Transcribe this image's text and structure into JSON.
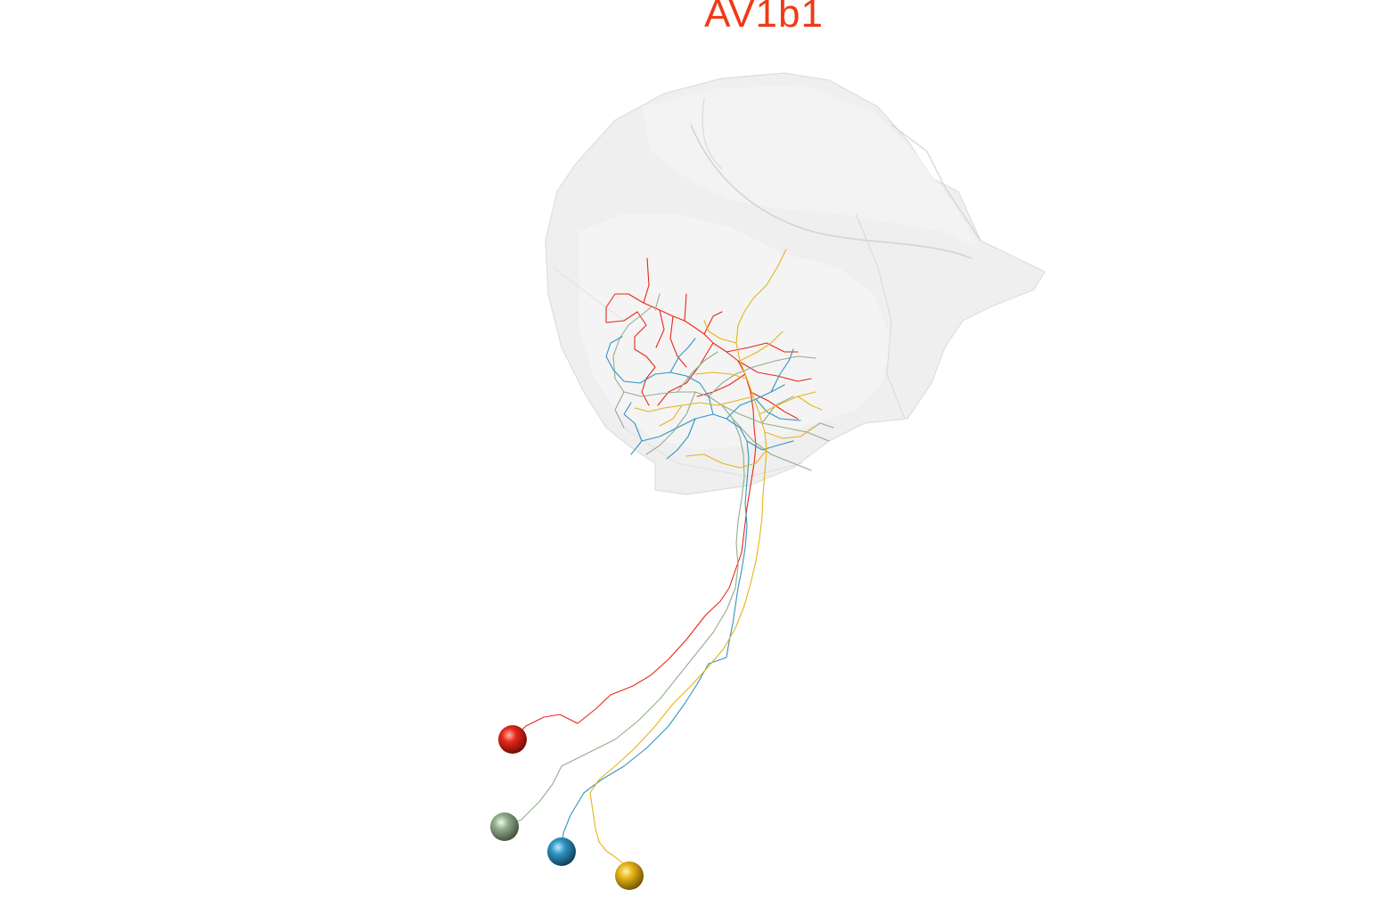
{
  "title": "AV1b1",
  "colors": {
    "title": "#f03a17",
    "neuron_red": "#e8271a",
    "neuron_sage": "#93ad8a",
    "neuron_blue": "#2f95c2",
    "neuron_yellow": "#e6b416",
    "mesh_fill": "#ececec"
  },
  "neurons": [
    {
      "name": "red",
      "color": "#e8271a"
    },
    {
      "name": "sage",
      "color": "#93ad8a"
    },
    {
      "name": "blue",
      "color": "#2f95c2"
    },
    {
      "name": "yellow",
      "color": "#e6b416"
    }
  ]
}
